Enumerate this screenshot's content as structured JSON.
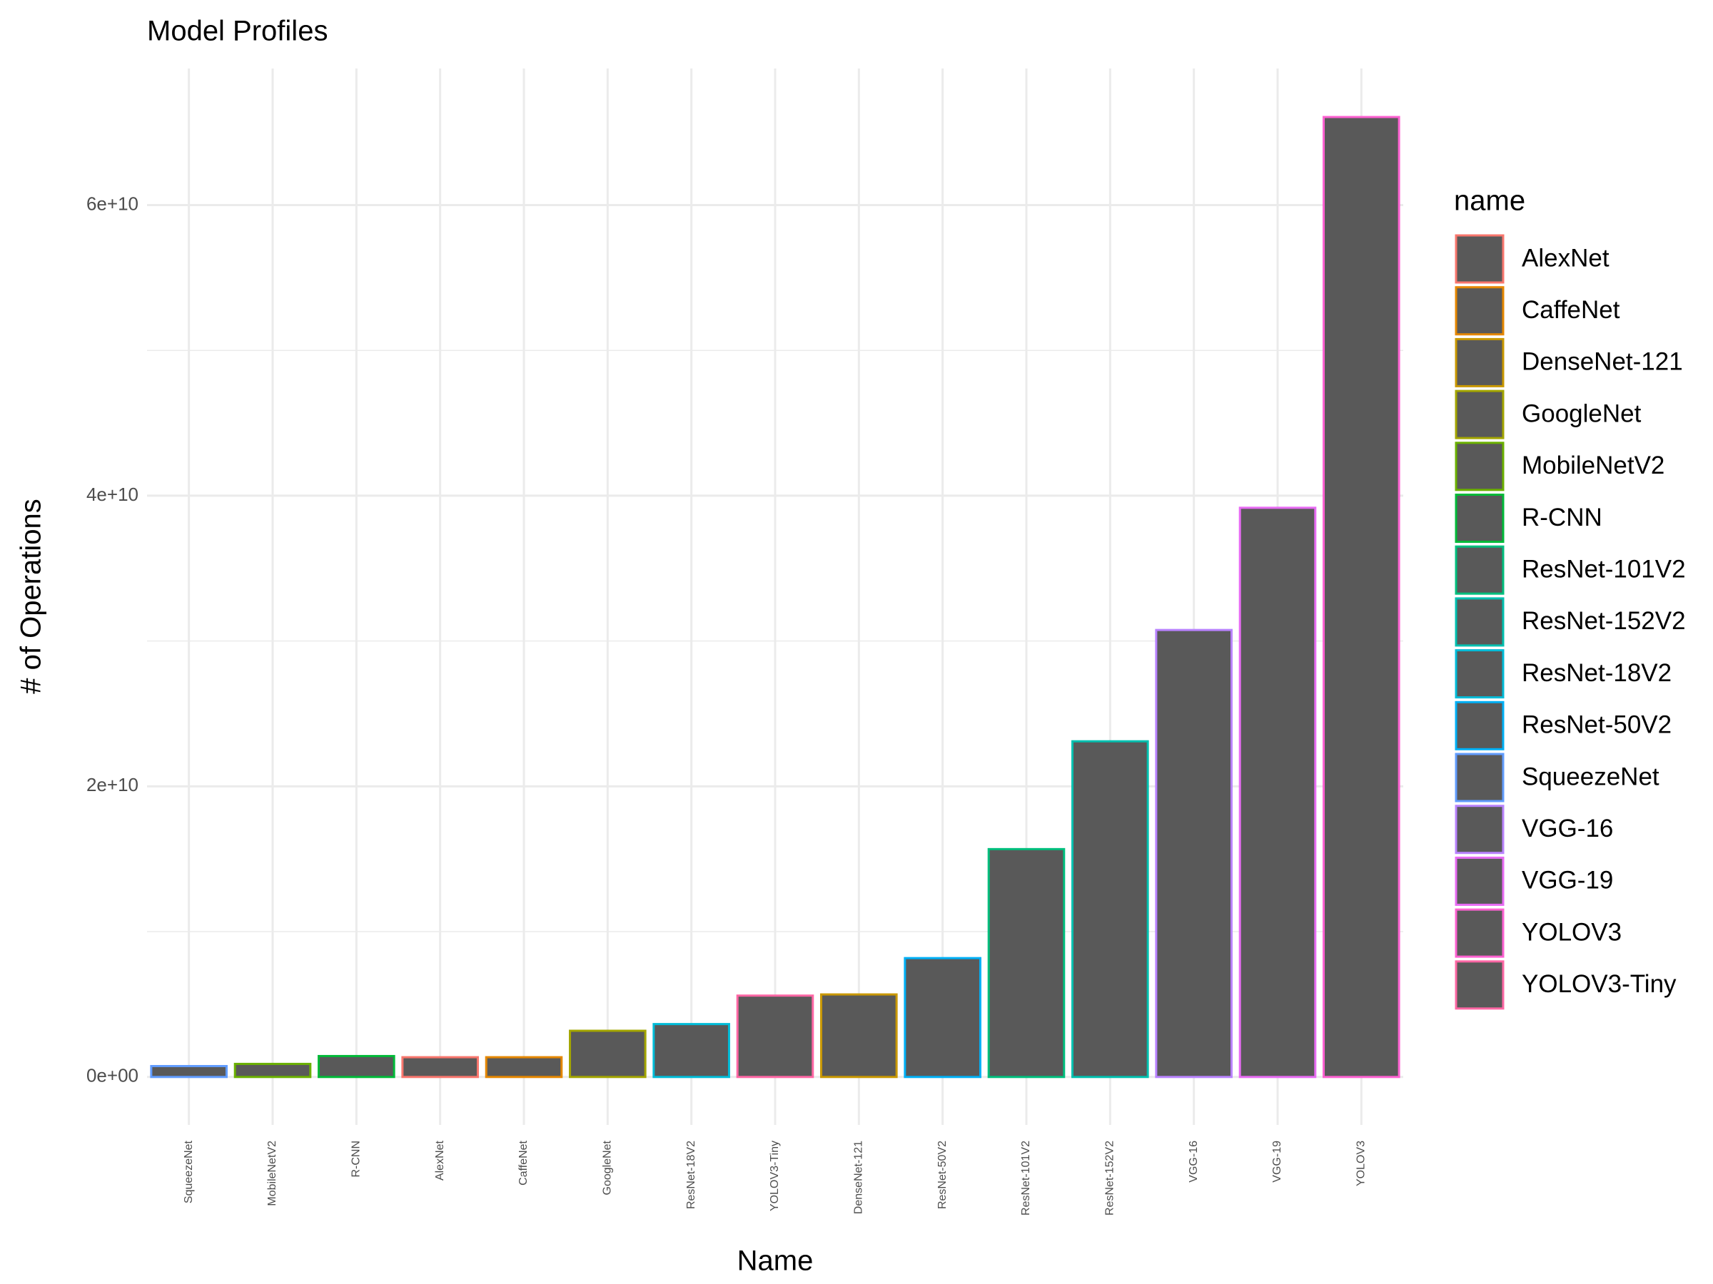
{
  "chart_data": {
    "type": "bar",
    "title": "Model Profiles",
    "x_label": "Name",
    "y_label": "# of Operations",
    "categories": [
      "SqueezeNet",
      "MobileNetV2",
      "R-CNN",
      "AlexNet",
      "CaffeNet",
      "GoogleNet",
      "ResNet-18V2",
      "YOLOV3-Tiny",
      "DenseNet-121",
      "ResNet-50V2",
      "ResNet-101V2",
      "ResNet-152V2",
      "VGG-16",
      "VGG-19",
      "YOLOV3"
    ],
    "values": [
      750000000,
      900000000,
      1440000000,
      1360000000,
      1360000000,
      3180000000,
      3640000000,
      5600000000,
      5680000000,
      8180000000,
      15680000000,
      23100000000,
      30760000000,
      39170000000,
      66060000000
    ],
    "fill": "#595959",
    "ylim": [
      -3300000000,
      69400000000
    ],
    "yticks": [
      {
        "value": 0,
        "label": "0e+00"
      },
      {
        "value": 20000000000,
        "label": "2e+10"
      },
      {
        "value": 40000000000,
        "label": "4e+10"
      },
      {
        "value": 60000000000,
        "label": "6e+10"
      }
    ],
    "minor_yticks": [
      10000000000,
      30000000000,
      50000000000
    ],
    "grid": true,
    "legend": {
      "title": "name",
      "position": "right",
      "labels": [
        "AlexNet",
        "CaffeNet",
        "DenseNet-121",
        "GoogleNet",
        "MobileNetV2",
        "R-CNN",
        "ResNet-101V2",
        "ResNet-152V2",
        "ResNet-18V2",
        "ResNet-50V2",
        "SqueezeNet",
        "VGG-16",
        "VGG-19",
        "YOLOV3",
        "YOLOV3-Tiny"
      ],
      "colors": [
        "#F8766D",
        "#E58700",
        "#C99800",
        "#A3A500",
        "#6BB100",
        "#00BA38",
        "#00BF7D",
        "#00C0AF",
        "#00BCD8",
        "#00B0F6",
        "#619CFF",
        "#B983FF",
        "#E76BF3",
        "#FD61D1",
        "#FF67A4"
      ]
    }
  }
}
